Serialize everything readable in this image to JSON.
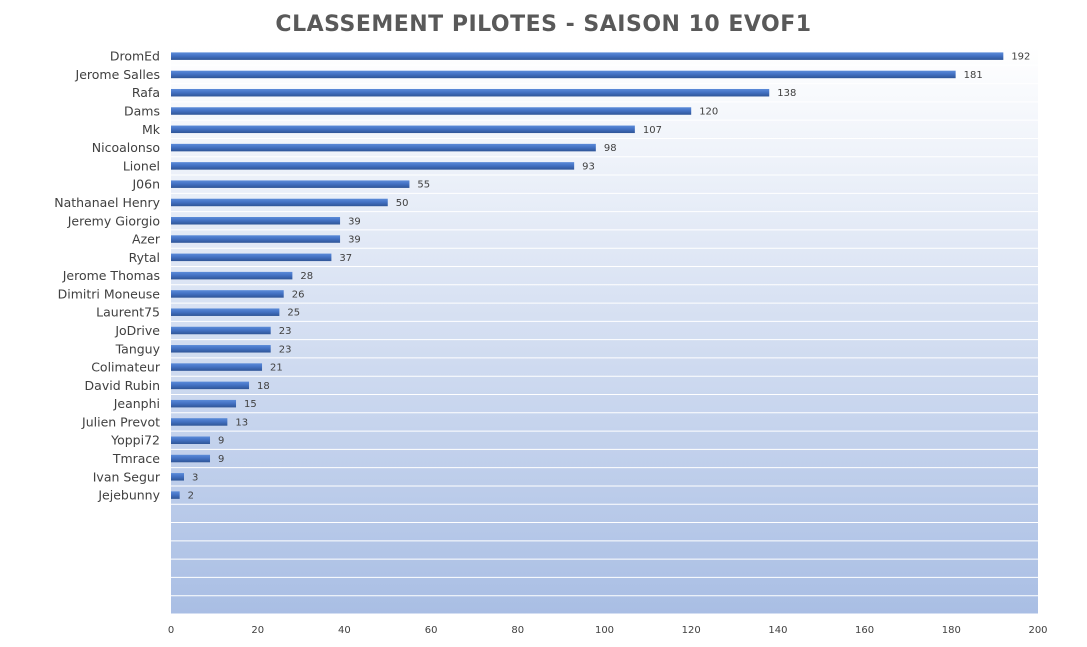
{
  "chart_data": {
    "type": "bar",
    "orientation": "horizontal",
    "title": "CLASSEMENT PILOTES - SAISON 10  EVOF1",
    "categories": [
      "DromEd",
      "Jerome Salles",
      "Rafa",
      "Dams",
      "Mk",
      "Nicoalonso",
      "Lionel",
      "J06n",
      "Nathanael Henry",
      "Jeremy Giorgio",
      "Azer",
      "Rytal",
      "Jerome Thomas",
      "Dimitri Moneuse",
      "Laurent75",
      "JoDrive",
      "Tanguy",
      "Colimateur",
      "David Rubin",
      "Jeanphi",
      "Julien Prevot",
      "Yoppi72",
      "Tmrace",
      "Ivan Segur",
      "Jejebunny"
    ],
    "values": [
      192,
      181,
      138,
      120,
      107,
      98,
      93,
      55,
      50,
      39,
      39,
      37,
      28,
      26,
      25,
      23,
      23,
      21,
      18,
      15,
      13,
      9,
      9,
      3,
      2
    ],
    "xlim": [
      0,
      200
    ],
    "xticks": [
      0,
      20,
      40,
      60,
      80,
      100,
      120,
      140,
      160,
      180,
      200
    ],
    "total_slots": 31,
    "data_labels": true,
    "legend": "none",
    "grid": "horizontal-lines",
    "colors": {
      "bar": "#4472C4",
      "bar_dark": "#2F5597",
      "bar_light": "#5B8BD9",
      "plot_bg_top": "#FFFFFF",
      "plot_bg_bottom": "#A9BEE4",
      "grid": "#FFFFFF",
      "text": "#404040",
      "title": "#595959"
    }
  }
}
